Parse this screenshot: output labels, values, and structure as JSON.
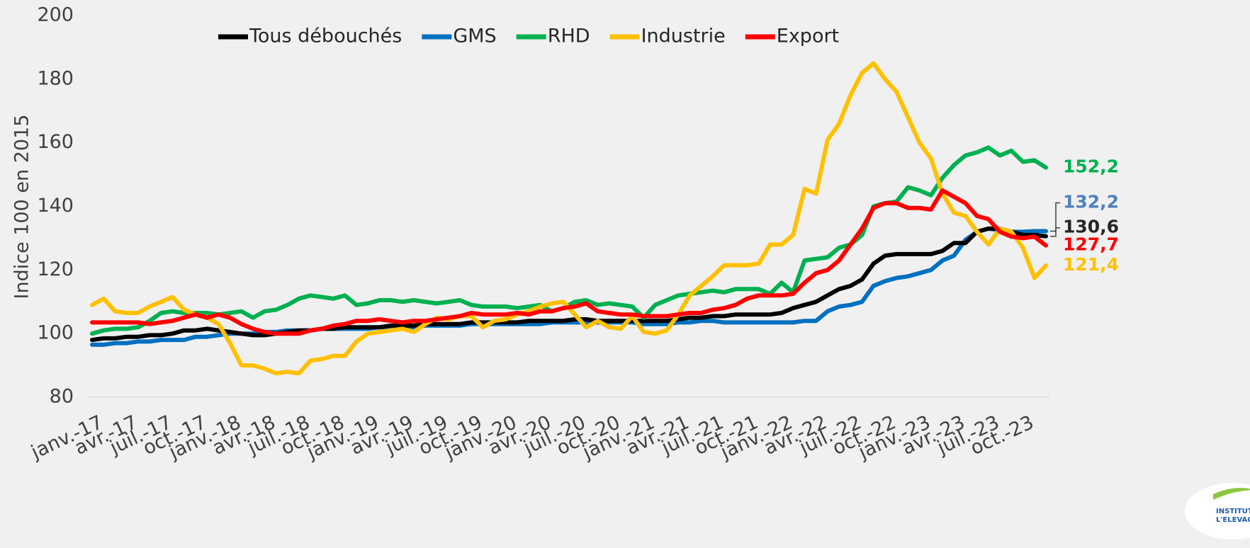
{
  "chart_data": {
    "type": "line",
    "y_axis_label": "Indice 100 en 2015",
    "ylim": [
      80,
      200
    ],
    "yticks": [
      80,
      100,
      120,
      140,
      160,
      180,
      200
    ],
    "categories": [
      "janv.-17",
      null,
      null,
      "avr.-17",
      null,
      null,
      "juil.-17",
      null,
      null,
      "oct.-17",
      null,
      null,
      "janv.-18",
      null,
      null,
      "avr.-18",
      null,
      null,
      "juil.-18",
      null,
      null,
      "oct.-18",
      null,
      null,
      "janv.-19",
      null,
      null,
      "avr.-19",
      null,
      null,
      "juil.-19",
      null,
      null,
      "oct.-19",
      null,
      null,
      "janv.-20",
      null,
      null,
      "avr.-20",
      null,
      null,
      "juil.-20",
      null,
      null,
      "oct.-20",
      null,
      null,
      "janv.-21",
      null,
      null,
      "avr.-21",
      null,
      null,
      "juil.-21",
      null,
      null,
      "oct.-21",
      null,
      null,
      "janv.-22",
      null,
      null,
      "avr.-22",
      null,
      null,
      "juil.-22",
      null,
      null,
      "oct.-22",
      null,
      null,
      "janv.-23",
      null,
      null,
      "avr.-23",
      null,
      null,
      "juil.-23",
      null,
      null,
      "oct.-23",
      null,
      null
    ],
    "series": [
      {
        "name": "Tous débouchés",
        "color": "#000000",
        "values": [
          98,
          98.5,
          98.5,
          99,
          99,
          99.5,
          99.5,
          100,
          101,
          101,
          101.5,
          101,
          100.5,
          100,
          99.5,
          99.5,
          100,
          100.5,
          101,
          101,
          101.5,
          101.5,
          102,
          102,
          102,
          102,
          102.5,
          102.5,
          102.5,
          103,
          103,
          103,
          103,
          103.5,
          103.5,
          103.5,
          103.5,
          103.5,
          104,
          104,
          104,
          104,
          104.5,
          104.5,
          104,
          104,
          104,
          104,
          104,
          104,
          104,
          104.5,
          105,
          105,
          105.5,
          105.5,
          106,
          106,
          106,
          106,
          106.5,
          108,
          109,
          110,
          112,
          114,
          115,
          117,
          122,
          124.5,
          125,
          125,
          125,
          125,
          126,
          128.5,
          128.5,
          132,
          133,
          133,
          132,
          131,
          131,
          130.6
        ],
        "value_labels": [
          null,
          null,
          null,
          null,
          null,
          null,
          null,
          null,
          null,
          null,
          null,
          null,
          null,
          null,
          null,
          null,
          null,
          null,
          null,
          null,
          null,
          null,
          null,
          null,
          null,
          null,
          null,
          null,
          null,
          null,
          null,
          null,
          null,
          null,
          null,
          null,
          null,
          null,
          null,
          null,
          null,
          null,
          null,
          null,
          null,
          null,
          null,
          null,
          null,
          null,
          null,
          null,
          null,
          null,
          null,
          null,
          null,
          null,
          null,
          null,
          null,
          null,
          null,
          null,
          null,
          null,
          null,
          null,
          null,
          null,
          null,
          null,
          null,
          null,
          null,
          null,
          null,
          null,
          null,
          null,
          null,
          null,
          null,
          "130,6"
        ]
      },
      {
        "name": "GMS",
        "color": "#0070c0",
        "values": [
          96.5,
          96.5,
          97,
          97,
          97.5,
          97.5,
          98,
          98,
          98,
          99,
          99,
          99.5,
          100,
          100,
          100,
          100.5,
          100.5,
          101,
          101,
          101,
          101.5,
          101.5,
          101.5,
          101.5,
          101.5,
          102,
          102,
          102,
          102,
          102.5,
          102.5,
          102.5,
          102.5,
          103,
          103,
          103,
          103,
          103,
          103,
          103,
          103.5,
          103.5,
          103.5,
          103.5,
          103.5,
          103.5,
          103.5,
          103.5,
          103,
          103,
          103,
          103.5,
          103.5,
          104,
          104,
          103.5,
          103.5,
          103.5,
          103.5,
          103.5,
          103.5,
          103.5,
          104,
          104,
          107,
          108.5,
          109,
          110,
          115,
          116.5,
          117.5,
          118,
          119,
          120,
          123,
          124.5,
          129.5,
          132,
          133,
          132.5,
          132,
          132,
          132.2,
          132.2
        ],
        "value_labels": [
          null,
          null,
          null,
          null,
          null,
          null,
          null,
          null,
          null,
          null,
          null,
          null,
          null,
          null,
          null,
          null,
          null,
          null,
          null,
          null,
          null,
          null,
          null,
          null,
          null,
          null,
          null,
          null,
          null,
          null,
          null,
          null,
          null,
          null,
          null,
          null,
          null,
          null,
          null,
          null,
          null,
          null,
          null,
          null,
          null,
          null,
          null,
          null,
          null,
          null,
          null,
          null,
          null,
          null,
          null,
          null,
          null,
          null,
          null,
          null,
          null,
          null,
          null,
          null,
          null,
          null,
          null,
          null,
          null,
          null,
          null,
          null,
          null,
          null,
          null,
          null,
          null,
          null,
          null,
          null,
          null,
          null,
          null,
          "132,2"
        ]
      },
      {
        "name": "RHD",
        "color": "#00b050",
        "values": [
          100,
          101,
          101.5,
          101.5,
          102,
          104,
          106.5,
          107,
          106.5,
          106.5,
          106.5,
          106,
          106.5,
          107,
          105,
          107,
          107.5,
          109,
          111,
          112,
          111.5,
          111,
          112,
          109,
          109.5,
          110.5,
          110.5,
          110,
          110.5,
          110,
          109.5,
          110,
          110.5,
          109,
          108.5,
          108.5,
          108.5,
          108,
          108.5,
          109,
          107,
          108,
          110,
          110.5,
          109,
          109.5,
          109,
          108.5,
          105,
          109,
          110.5,
          112,
          112.5,
          113,
          113.5,
          113,
          114,
          114,
          114,
          112.5,
          116,
          113,
          123,
          123.5,
          124,
          127,
          128,
          131,
          140,
          141,
          141.5,
          146,
          145,
          143.5,
          149,
          153,
          156,
          157,
          158.5,
          156,
          157.5,
          154,
          154.5,
          152.2
        ],
        "value_labels": [
          null,
          null,
          null,
          null,
          null,
          null,
          null,
          null,
          null,
          null,
          null,
          null,
          null,
          null,
          null,
          null,
          null,
          null,
          null,
          null,
          null,
          null,
          null,
          null,
          null,
          null,
          null,
          null,
          null,
          null,
          null,
          null,
          null,
          null,
          null,
          null,
          null,
          null,
          null,
          null,
          null,
          null,
          null,
          null,
          null,
          null,
          null,
          null,
          null,
          null,
          null,
          null,
          null,
          null,
          null,
          null,
          null,
          null,
          null,
          null,
          null,
          null,
          null,
          null,
          null,
          null,
          null,
          null,
          null,
          null,
          null,
          null,
          null,
          null,
          null,
          null,
          null,
          null,
          null,
          null,
          null,
          null,
          null,
          "152,2"
        ]
      },
      {
        "name": "Industrie",
        "color": "#ffc000",
        "values": [
          109,
          111,
          107,
          106.5,
          106.5,
          108.5,
          110,
          111.5,
          107.5,
          106,
          105,
          103,
          97,
          90,
          90,
          89,
          87.5,
          88,
          87.5,
          91.5,
          92,
          93,
          93,
          97.5,
          100,
          100.5,
          101,
          101.5,
          100.5,
          103,
          105,
          104.5,
          105.5,
          105.5,
          102,
          104,
          104.5,
          106,
          107,
          108.5,
          109.5,
          110,
          106,
          102,
          104,
          102,
          101.5,
          105.5,
          100.5,
          100,
          101,
          106,
          112,
          115,
          118,
          121.5,
          121.5,
          121.5,
          122,
          128,
          128,
          131,
          145.5,
          144,
          161,
          166,
          175,
          182,
          185,
          180,
          176,
          168,
          160,
          155,
          144,
          138,
          137,
          132,
          128,
          133,
          132,
          127,
          117.5,
          121.4
        ],
        "value_labels": [
          null,
          null,
          null,
          null,
          null,
          null,
          null,
          null,
          null,
          null,
          null,
          null,
          null,
          null,
          null,
          null,
          null,
          null,
          null,
          null,
          null,
          null,
          null,
          null,
          null,
          null,
          null,
          null,
          null,
          null,
          null,
          null,
          null,
          null,
          null,
          null,
          null,
          null,
          null,
          null,
          null,
          null,
          null,
          null,
          null,
          null,
          null,
          null,
          null,
          null,
          null,
          null,
          null,
          null,
          null,
          null,
          null,
          null,
          null,
          null,
          null,
          null,
          null,
          null,
          null,
          null,
          null,
          null,
          null,
          null,
          null,
          null,
          null,
          null,
          null,
          null,
          null,
          null,
          null,
          null,
          null,
          null,
          null,
          "121,4"
        ]
      },
      {
        "name": "Export",
        "color": "#ff0000",
        "values": [
          103.5,
          103.5,
          103.5,
          103.5,
          103.5,
          103,
          103.5,
          104,
          105,
          106,
          105,
          106,
          105,
          103,
          101.5,
          100.5,
          100,
          100,
          100,
          101,
          101.5,
          102.5,
          103,
          104,
          104,
          104.5,
          104,
          103.5,
          104,
          104,
          104.5,
          105,
          105.5,
          106.5,
          106,
          106,
          106,
          106.5,
          106,
          107,
          107,
          108,
          108.5,
          109.5,
          107,
          106.5,
          106,
          106,
          105.5,
          105.5,
          105.5,
          106,
          106.5,
          106.5,
          107.5,
          108,
          109,
          111,
          112,
          112,
          112,
          112.5,
          116,
          119,
          120,
          123,
          128,
          133,
          139.5,
          141,
          141,
          139.5,
          139.5,
          139,
          145,
          143,
          141,
          137,
          136,
          132,
          130.5,
          130,
          130.5,
          127.7
        ],
        "value_labels": [
          null,
          null,
          null,
          null,
          null,
          null,
          null,
          null,
          null,
          null,
          null,
          null,
          null,
          null,
          null,
          null,
          null,
          null,
          null,
          null,
          null,
          null,
          null,
          null,
          null,
          null,
          null,
          null,
          null,
          null,
          null,
          null,
          null,
          null,
          null,
          null,
          null,
          null,
          null,
          null,
          null,
          null,
          null,
          null,
          null,
          null,
          null,
          null,
          null,
          null,
          null,
          null,
          null,
          null,
          null,
          null,
          null,
          null,
          null,
          null,
          null,
          null,
          null,
          null,
          null,
          null,
          null,
          null,
          null,
          null,
          null,
          null,
          null,
          null,
          null,
          null,
          null,
          null,
          null,
          null,
          null,
          null,
          null,
          "127,7"
        ]
      }
    ],
    "logo": [
      "INSTITUT DE",
      "L'ELEVAGE"
    ]
  }
}
